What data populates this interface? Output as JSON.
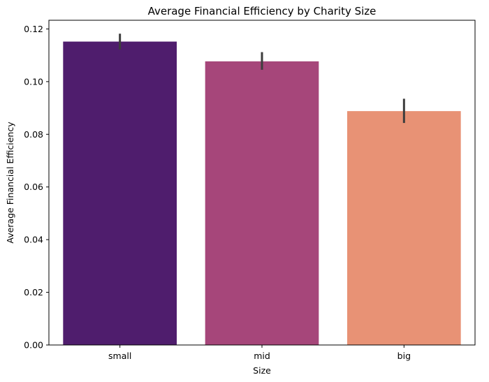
{
  "chart_data": {
    "type": "bar",
    "title": "Average Financial Efficiency by Charity Size",
    "xlabel": "Size",
    "ylabel": "Average Financial Efficiency",
    "categories": [
      "small",
      "mid",
      "big"
    ],
    "values": [
      0.1152,
      0.1077,
      0.0888
    ],
    "error_low": [
      0.1122,
      0.1045,
      0.0843
    ],
    "error_high": [
      0.1182,
      0.1112,
      0.0935
    ],
    "colors": [
      "#4f1d6d",
      "#a6467a",
      "#e89275"
    ],
    "error_color": "#3d3d3d",
    "ylim": [
      0,
      0.1233
    ],
    "yticks": [
      0.0,
      0.02,
      0.04,
      0.06,
      0.08,
      0.1,
      0.12
    ],
    "ytick_labels": [
      "0.00",
      "0.02",
      "0.04",
      "0.06",
      "0.08",
      "0.10",
      "0.12"
    ],
    "grid": false,
    "legend": "none"
  }
}
